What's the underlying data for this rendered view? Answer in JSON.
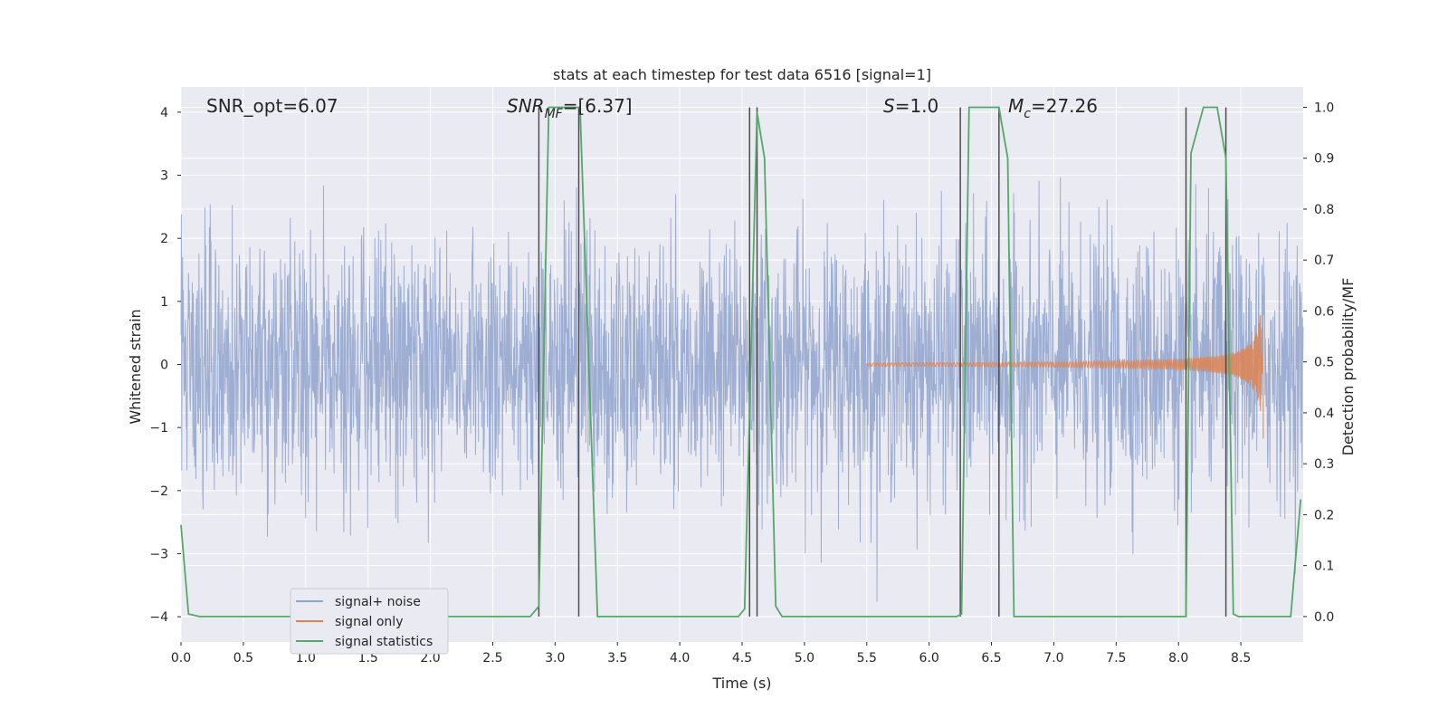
{
  "chart_data": {
    "type": "line",
    "title": "stats at each timestep for test data 6516 [signal=1]",
    "xlabel": "Time (s)",
    "ylabel": "Whitened strain",
    "ylabel_right": "Detection probability/MF",
    "xlim": [
      0.0,
      9.0
    ],
    "ylim": [
      -4.4,
      4.4
    ],
    "ylim_right": [
      -0.05,
      1.04
    ],
    "xticks": [
      "0.0",
      "0.5",
      "1.0",
      "1.5",
      "2.0",
      "2.5",
      "3.0",
      "3.5",
      "4.0",
      "4.5",
      "5.0",
      "5.5",
      "6.0",
      "6.5",
      "7.0",
      "7.5",
      "8.0",
      "8.5"
    ],
    "xtick_values": [
      0.0,
      0.5,
      1.0,
      1.5,
      2.0,
      2.5,
      3.0,
      3.5,
      4.0,
      4.5,
      5.0,
      5.5,
      6.0,
      6.5,
      7.0,
      7.5,
      8.0,
      8.5
    ],
    "yticks": [
      "4",
      "3",
      "2",
      "1",
      "0",
      "−1",
      "−2",
      "−3",
      "−4"
    ],
    "ytick_values": [
      4,
      3,
      2,
      1,
      0,
      -1,
      -2,
      -3,
      -4
    ],
    "yticks_right": [
      "1.0",
      "0.9",
      "0.8",
      "0.7",
      "0.6",
      "0.5",
      "0.4",
      "0.3",
      "0.2",
      "0.1",
      "0.0"
    ],
    "ytick_values_right": [
      1.0,
      0.9,
      0.8,
      0.7,
      0.6,
      0.5,
      0.4,
      0.3,
      0.2,
      0.1,
      0.0
    ],
    "grid": true,
    "legend_position": "lower-left",
    "annotations": [
      {
        "key": "snr_opt",
        "text": "SNR_opt=6.07",
        "x": 0.2
      },
      {
        "key": "snr_mf",
        "text": "SNR_MF=[6.37]",
        "x": 2.6
      },
      {
        "key": "s",
        "text": "S=1.0",
        "x": 5.6
      },
      {
        "key": "mc",
        "text": "M_c=27.26",
        "x": 6.6
      }
    ],
    "annotation_parts": {
      "snr_opt": "SNR_opt=6.07",
      "snr_mf_base": "SNR",
      "snr_mf_sub": "MF",
      "snr_mf_value": "=[6.37]",
      "s_base": "S",
      "s_value": "=1.0",
      "mc_base": "M",
      "mc_sub": "c",
      "mc_value": "=27.26"
    },
    "vertical_lines_x": [
      2.87,
      3.19,
      4.56,
      4.62,
      6.25,
      6.56,
      8.06,
      8.38
    ],
    "series": [
      {
        "name": "signal+ noise",
        "kind": "noise",
        "color": "#8fa3cc",
        "x_range": [
          0.0,
          9.0
        ],
        "std": 1.0,
        "approx_range": [
          -3.9,
          3.7
        ]
      },
      {
        "name": "signal only",
        "kind": "chirp",
        "color": "#dd8452",
        "start_x": 5.5,
        "peak_x": 8.68,
        "peak_amplitude": 1.5
      },
      {
        "name": "signal statistics",
        "kind": "probability",
        "color": "#55a868",
        "axis": "right",
        "x": [
          0.0,
          0.06,
          0.15,
          2.8,
          2.87,
          2.95,
          3.2,
          3.34,
          4.47,
          4.52,
          4.62,
          4.68,
          4.77,
          4.82,
          6.22,
          6.26,
          6.32,
          6.56,
          6.63,
          6.68,
          8.06,
          8.1,
          8.2,
          8.31,
          8.38,
          8.44,
          8.48,
          8.9,
          8.98
        ],
        "values": [
          0.18,
          0.005,
          0.0,
          0.0,
          0.02,
          1.0,
          1.0,
          0.0,
          0.0,
          0.015,
          0.99,
          0.9,
          0.02,
          0.0,
          0.0,
          0.005,
          1.0,
          1.0,
          0.9,
          0.0,
          0.0,
          0.91,
          1.0,
          1.0,
          0.9,
          0.005,
          0.0,
          0.0,
          0.23
        ]
      }
    ]
  },
  "colors": {
    "axes_background": "#eaeaf2",
    "grid": "#ffffff",
    "vertical_lines": "#4d4d4d",
    "text": "#262626"
  }
}
